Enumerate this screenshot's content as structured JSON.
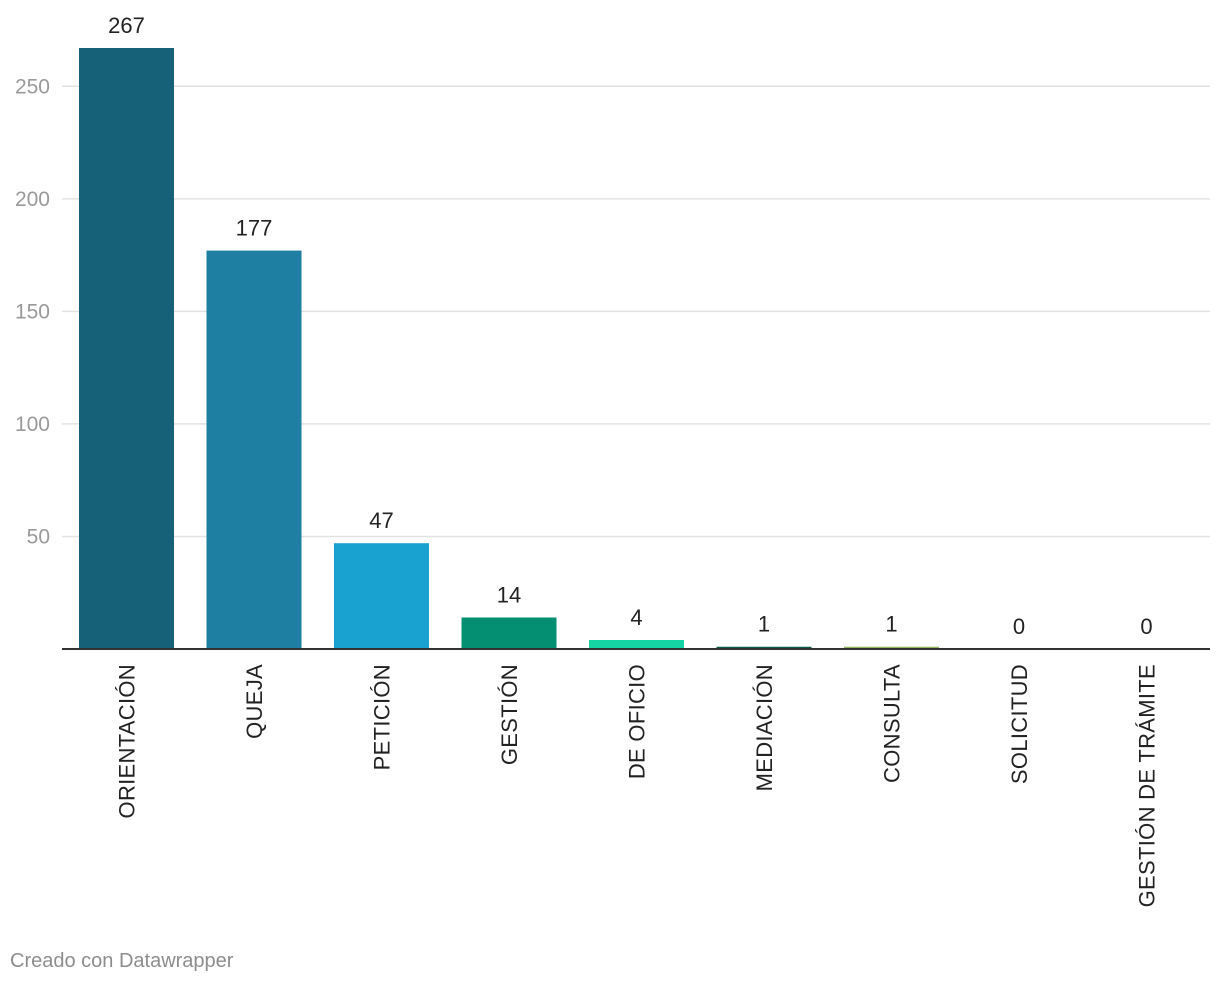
{
  "chart_data": {
    "type": "bar",
    "title": "",
    "xlabel": "",
    "ylabel": "",
    "ylim": [
      0,
      267
    ],
    "yticks": [
      50,
      100,
      150,
      200,
      250
    ],
    "grid": true,
    "categories": [
      "ORIENTACIÓN",
      "QUEJA",
      "PETICIÓN",
      "GESTIÓN",
      "DE OFICIO",
      "MEDIACIÓN",
      "CONSULTA",
      "SOLICITUD",
      "GESTIÓN DE TRÁMITE"
    ],
    "values": [
      267,
      177,
      47,
      14,
      4,
      1,
      1,
      0,
      0
    ],
    "colors": [
      "#176178",
      "#1e7fa2",
      "#19a1cf",
      "#048f72",
      "#16d3a4",
      "#0d5d4c",
      "#93b45c",
      "#999999",
      "#999999"
    ]
  },
  "footer": {
    "credit": "Creado con Datawrapper"
  }
}
